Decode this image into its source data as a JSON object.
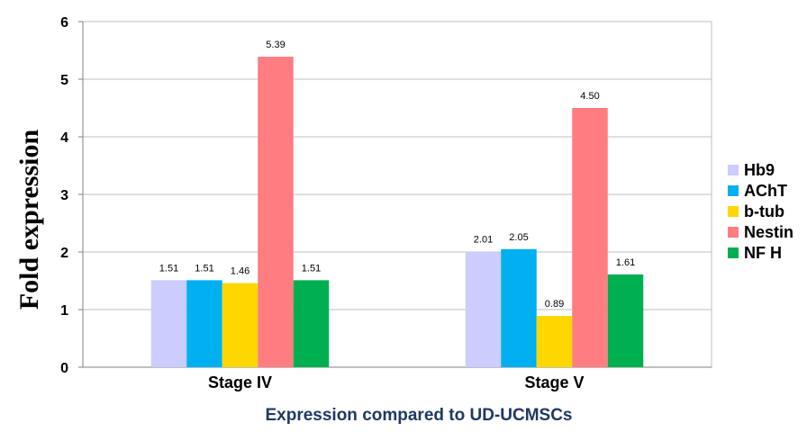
{
  "chart_data": {
    "type": "bar",
    "title": "",
    "xlabel": "Expression compared to UD-UCMSCs",
    "ylabel": "Fold expression",
    "ylim": [
      0,
      6
    ],
    "yticks": [
      "0",
      "1",
      "2",
      "3",
      "4",
      "5",
      "6"
    ],
    "grid": true,
    "legend_position": "right",
    "categories": [
      "Stage IV",
      "Stage V"
    ],
    "series": [
      {
        "name": "Hb9",
        "color": "#ccccff",
        "values": [
          1.51,
          2.01
        ],
        "labels": [
          "1.51",
          "2.01"
        ]
      },
      {
        "name": "AChT",
        "color": "#00b0f0",
        "values": [
          1.51,
          2.05
        ],
        "labels": [
          "1.51",
          "2.05"
        ]
      },
      {
        "name": "b-tub",
        "color": "#ffd700",
        "values": [
          1.46,
          0.89
        ],
        "labels": [
          "1.46",
          "0.89"
        ]
      },
      {
        "name": "Nestin",
        "color": "#ff7c80",
        "values": [
          5.39,
          4.5
        ],
        "labels": [
          "5.39",
          "4.50"
        ]
      },
      {
        "name": "NF H",
        "color": "#00b050",
        "values": [
          1.51,
          1.61
        ],
        "labels": [
          "1.51",
          "1.61"
        ]
      }
    ]
  }
}
